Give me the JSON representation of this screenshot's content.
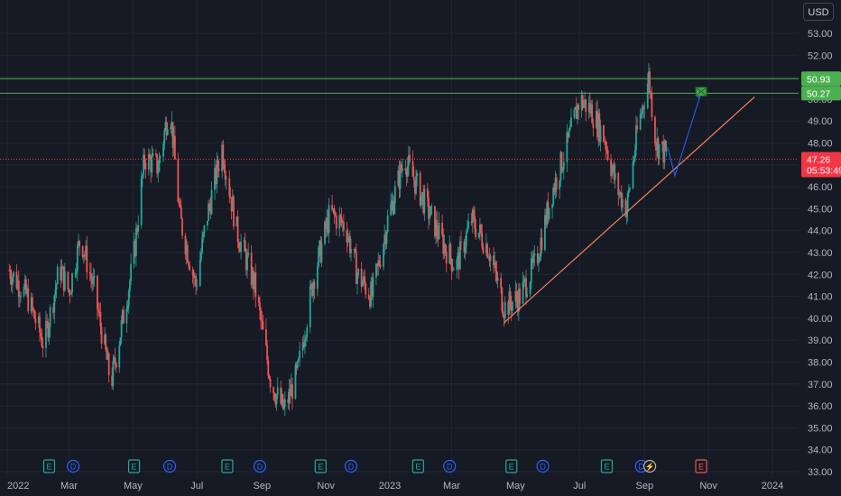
{
  "currency": "USD",
  "y_ticks": [
    "53.00",
    "52.00",
    "51.00",
    "50.00",
    "49.00",
    "48.00",
    "47.00",
    "46.00",
    "45.00",
    "44.00",
    "43.00",
    "42.00",
    "41.00",
    "40.00",
    "39.00",
    "38.00",
    "37.00",
    "36.00",
    "35.00",
    "34.00",
    "33.00"
  ],
  "x_ticks": [
    "2022",
    "Mar",
    "May",
    "Jul",
    "Sep",
    "Nov",
    "2023",
    "Mar",
    "May",
    "Jul",
    "Sep",
    "Nov",
    "2024"
  ],
  "price_tags": {
    "resistance_upper": "50.93",
    "resistance_lower": "50.27",
    "last_price": "47.26",
    "countdown": "05:53:49"
  },
  "event_markers": [
    {
      "type": "E",
      "label": "E"
    },
    {
      "type": "D",
      "label": "D"
    },
    {
      "type": "E",
      "label": "E"
    },
    {
      "type": "D",
      "label": "D"
    },
    {
      "type": "E",
      "label": "E"
    },
    {
      "type": "D",
      "label": "D"
    },
    {
      "type": "E",
      "label": "E"
    },
    {
      "type": "D",
      "label": "D"
    },
    {
      "type": "E",
      "label": "E"
    },
    {
      "type": "D",
      "label": "D"
    },
    {
      "type": "E",
      "label": "E"
    },
    {
      "type": "D",
      "label": "D"
    },
    {
      "type": "E",
      "label": "E"
    },
    {
      "type": "D",
      "label": "D"
    },
    {
      "type": "split",
      "label": "⚡"
    },
    {
      "type": "E-future",
      "label": "E"
    }
  ],
  "colors": {
    "up": "#26a69a",
    "down": "#ef5350",
    "resistance": "#4caf50",
    "trendline": "#f7825a",
    "projection": "#2962ff",
    "last_price": "#f23645",
    "grid": "#232632",
    "dividend": "#2962ff",
    "earnings": "#26a69a"
  },
  "chart_data": {
    "type": "candlestick",
    "title": "",
    "xlabel": "",
    "ylabel": "",
    "ylim": [
      33,
      53.5
    ],
    "x_range": [
      "2022-01-01",
      "2024-01-15"
    ],
    "close_path": [
      {
        "date": "2022-01-03",
        "close": 42.2
      },
      {
        "date": "2022-01-20",
        "close": 41.0
      },
      {
        "date": "2022-02-05",
        "close": 38.8
      },
      {
        "date": "2022-02-20",
        "close": 42.3
      },
      {
        "date": "2022-03-01",
        "close": 41.2
      },
      {
        "date": "2022-03-12",
        "close": 43.7
      },
      {
        "date": "2022-03-25",
        "close": 41.3
      },
      {
        "date": "2022-04-10",
        "close": 37.0
      },
      {
        "date": "2022-04-20",
        "close": 39.6
      },
      {
        "date": "2022-05-01",
        "close": 42.5
      },
      {
        "date": "2022-05-12",
        "close": 47.3
      },
      {
        "date": "2022-05-25",
        "close": 46.9
      },
      {
        "date": "2022-06-05",
        "close": 49.8
      },
      {
        "date": "2022-06-15",
        "close": 44.5
      },
      {
        "date": "2022-06-30",
        "close": 41.5
      },
      {
        "date": "2022-07-10",
        "close": 44.5
      },
      {
        "date": "2022-07-25",
        "close": 47.8
      },
      {
        "date": "2022-08-08",
        "close": 44.0
      },
      {
        "date": "2022-08-25",
        "close": 41.5
      },
      {
        "date": "2022-09-10",
        "close": 37.0
      },
      {
        "date": "2022-09-22",
        "close": 35.8
      },
      {
        "date": "2022-10-05",
        "close": 37.5
      },
      {
        "date": "2022-10-20",
        "close": 41.8
      },
      {
        "date": "2022-11-05",
        "close": 44.8
      },
      {
        "date": "2022-11-20",
        "close": 44.2
      },
      {
        "date": "2022-12-01",
        "close": 42.0
      },
      {
        "date": "2022-12-15",
        "close": 41.0
      },
      {
        "date": "2022-12-30",
        "close": 44.5
      },
      {
        "date": "2023-01-15",
        "close": 47.3
      },
      {
        "date": "2023-02-01",
        "close": 45.5
      },
      {
        "date": "2023-02-20",
        "close": 43.5
      },
      {
        "date": "2023-03-05",
        "close": 42.3
      },
      {
        "date": "2023-03-20",
        "close": 44.5
      },
      {
        "date": "2023-04-05",
        "close": 43.2
      },
      {
        "date": "2023-04-20",
        "close": 40.5
      },
      {
        "date": "2023-05-05",
        "close": 41.0
      },
      {
        "date": "2023-05-20",
        "close": 42.5
      },
      {
        "date": "2023-06-05",
        "close": 45.8
      },
      {
        "date": "2023-06-20",
        "close": 48.0
      },
      {
        "date": "2023-07-01",
        "close": 50.0
      },
      {
        "date": "2023-07-12",
        "close": 49.5
      },
      {
        "date": "2023-07-25",
        "close": 48.2
      },
      {
        "date": "2023-08-05",
        "close": 46.0
      },
      {
        "date": "2023-08-15",
        "close": 45.0
      },
      {
        "date": "2023-08-25",
        "close": 48.5
      },
      {
        "date": "2023-09-05",
        "close": 51.0
      },
      {
        "date": "2023-09-12",
        "close": 48.0
      },
      {
        "date": "2023-09-25",
        "close": 47.26
      }
    ],
    "annotations": [
      {
        "kind": "horizontal_line",
        "price": 50.93
      },
      {
        "kind": "horizontal_line",
        "price": 50.27
      },
      {
        "kind": "trendline",
        "points": [
          {
            "date": "2023-04-20",
            "price": 39.8
          },
          {
            "date": "2023-12-15",
            "price": 50.1
          }
        ]
      },
      {
        "kind": "projection_arrow",
        "points": [
          {
            "date": "2023-09-30",
            "price": 46.5
          },
          {
            "date": "2023-10-25",
            "price": 50.3
          }
        ]
      }
    ],
    "grid": true,
    "legend": "none"
  }
}
